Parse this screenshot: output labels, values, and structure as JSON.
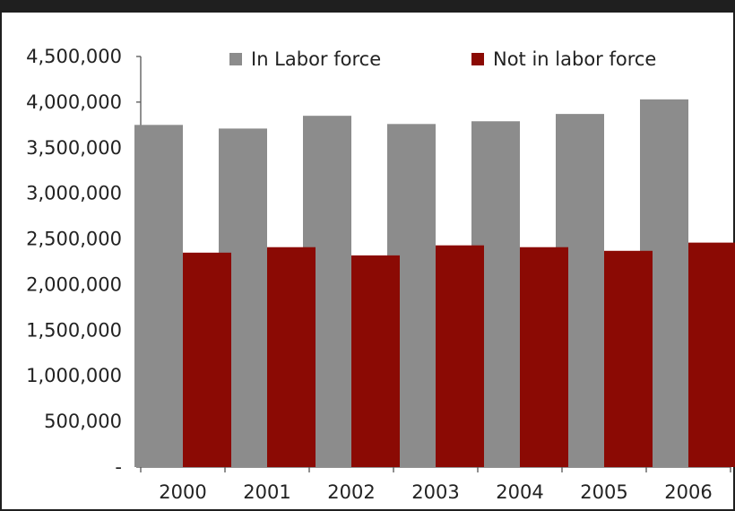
{
  "chart_data": {
    "type": "bar",
    "title": "",
    "xlabel": "",
    "ylabel": "",
    "categories": [
      "2000",
      "2001",
      "2002",
      "2003",
      "2004",
      "2005",
      "2006"
    ],
    "series": [
      {
        "name": "In Labor force",
        "color": "#8c8c8c",
        "values": [
          3750000,
          3710000,
          3850000,
          3760000,
          3790000,
          3870000,
          4030000
        ]
      },
      {
        "name": "Not in labor force",
        "color": "#8b0a04",
        "values": [
          2350000,
          2410000,
          2320000,
          2430000,
          2410000,
          2370000,
          2460000
        ]
      }
    ],
    "ylim": [
      0,
      4500000
    ],
    "y_ticks": [
      {
        "value": 0,
        "label": "-"
      },
      {
        "value": 500000,
        "label": "500,000"
      },
      {
        "value": 1000000,
        "label": "1,000,000"
      },
      {
        "value": 1500000,
        "label": "1,500,000"
      },
      {
        "value": 2000000,
        "label": "2,000,000"
      },
      {
        "value": 2500000,
        "label": "2,500,000"
      },
      {
        "value": 3000000,
        "label": "3,000,000"
      },
      {
        "value": 3500000,
        "label": "3,500,000"
      },
      {
        "value": 4000000,
        "label": "4,000,000"
      },
      {
        "value": 4500000,
        "label": "4,500,000"
      }
    ],
    "grid": false,
    "legend": "top-center"
  }
}
